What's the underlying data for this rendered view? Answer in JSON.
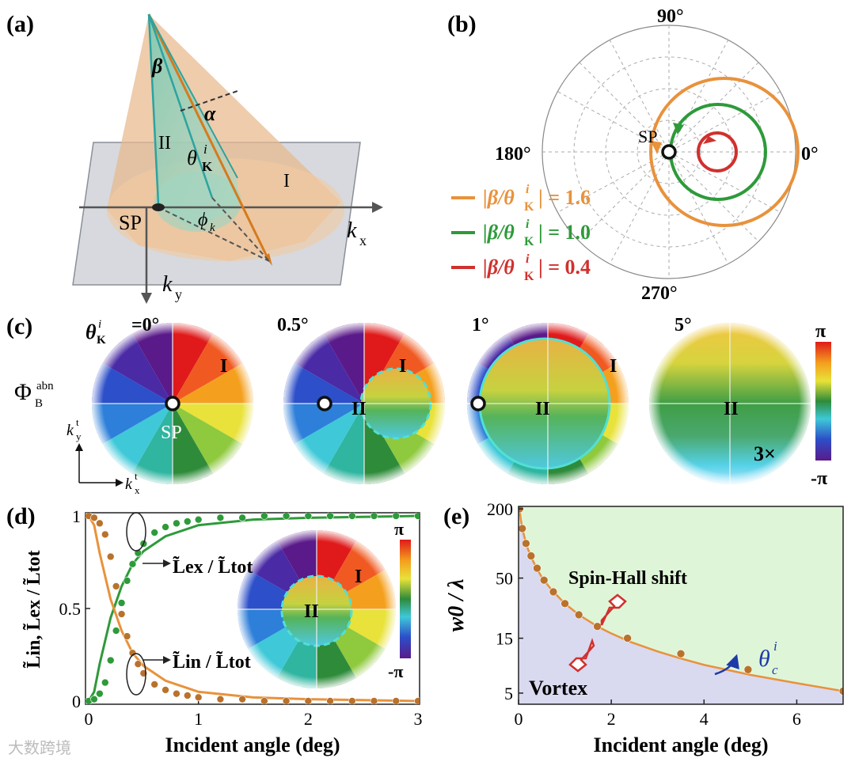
{
  "panel_a": {
    "label": "(a)",
    "beta": "β",
    "alpha": "α",
    "region_II": "II",
    "region_I": "I",
    "theta_main": "θ",
    "theta_sup": "i",
    "theta_sub": "K",
    "phi_main": "ϕ",
    "phi_sub": "k",
    "sp": "SP",
    "kx_main": "k",
    "kx_sub": "x",
    "ky_main": "k",
    "ky_sub": "y"
  },
  "panel_b": {
    "label": "(b)",
    "angle_90": "90°",
    "angle_180": "180°",
    "angle_0": "0°",
    "angle_270": "270°",
    "sp": "SP",
    "legend": [
      {
        "text": "|β/θ",
        "sub": "K",
        "sup": "i",
        "value": "| = 1.6",
        "color": "#e8923c"
      },
      {
        "text": "|β/θ",
        "sub": "K",
        "sup": "i",
        "value": "| = 1.0",
        "color": "#2e9a3a"
      },
      {
        "text": "|β/θ",
        "sub": "K",
        "sup": "i",
        "value": "| = 0.4",
        "color": "#d0312d"
      }
    ]
  },
  "panel_c": {
    "label": "(c)",
    "theta_prefix": "θ",
    "theta_sup": "i",
    "theta_sub": "K",
    "titles": [
      "=0°",
      "0.5°",
      "1°",
      "5°"
    ],
    "phi_main": "Φ",
    "phi_sub": "B",
    "phi_sup": "abn",
    "ky": "k",
    "ky_sub": "y",
    "ky_sup": "t",
    "kx": "k",
    "kx_sub": "x",
    "kx_sup": "t",
    "sp": "SP",
    "region_I": "I",
    "region_II": "II",
    "scale_note": "3×",
    "colorbar_top": "π",
    "colorbar_bottom": "-π"
  },
  "chart_data": [
    {
      "type": "line",
      "panel": "(d)",
      "xlabel": "Incident angle (deg)",
      "ylabel": "L̃in, L̃ex / L̃tot",
      "xlim": [
        0,
        3
      ],
      "ylim": [
        0,
        1
      ],
      "xticks": [
        "0",
        "1",
        "2",
        "3"
      ],
      "yticks": [
        "0",
        "0.5",
        "1"
      ],
      "annotation_ex": "L̃ex / L̃tot",
      "annotation_in": "L̃in / L̃tot",
      "inset_region_I": "I",
      "inset_region_II": "II",
      "inset_colorbar_top": "π",
      "inset_colorbar_bottom": "-π",
      "series": [
        {
          "marker": "line",
          "color": "#2e9a3a",
          "x": [
            0,
            0.05,
            0.1,
            0.2,
            0.3,
            0.4,
            0.5,
            0.7,
            1.0,
            1.5,
            2.0,
            3.0
          ],
          "y": [
            0,
            0.05,
            0.2,
            0.45,
            0.62,
            0.74,
            0.81,
            0.89,
            0.95,
            0.98,
            0.99,
            1.0
          ]
        },
        {
          "marker": "line",
          "color": "#e8923c",
          "x": [
            0,
            0.05,
            0.1,
            0.2,
            0.3,
            0.4,
            0.5,
            0.7,
            1.0,
            1.5,
            2.0,
            3.0
          ],
          "y": [
            1.0,
            0.95,
            0.8,
            0.55,
            0.38,
            0.26,
            0.19,
            0.11,
            0.05,
            0.02,
            0.01,
            0.0
          ]
        },
        {
          "marker": "dots",
          "color": "#2e9a3a",
          "x": [
            0,
            0.05,
            0.1,
            0.15,
            0.2,
            0.25,
            0.3,
            0.35,
            0.4,
            0.45,
            0.5,
            0.6,
            0.7,
            0.8,
            0.9,
            1.0,
            1.2,
            1.4,
            1.6,
            1.8,
            2.0,
            2.2,
            2.4,
            2.6,
            2.8,
            3.0
          ],
          "y": [
            0,
            0.01,
            0.04,
            0.1,
            0.22,
            0.38,
            0.53,
            0.65,
            0.74,
            0.8,
            0.85,
            0.91,
            0.94,
            0.96,
            0.97,
            0.98,
            0.99,
            0.99,
            1.0,
            1.0,
            1.0,
            1.0,
            1.0,
            1.0,
            1.0,
            1.0
          ]
        },
        {
          "marker": "dots",
          "color": "#b9722c",
          "x": [
            0,
            0.05,
            0.1,
            0.15,
            0.2,
            0.25,
            0.3,
            0.35,
            0.4,
            0.45,
            0.5,
            0.6,
            0.7,
            0.8,
            0.9,
            1.0,
            1.2,
            1.4,
            1.6,
            1.8,
            2.0,
            2.2,
            2.4,
            2.6,
            2.8,
            3.0
          ],
          "y": [
            1.0,
            0.99,
            0.96,
            0.9,
            0.78,
            0.62,
            0.47,
            0.35,
            0.26,
            0.2,
            0.15,
            0.09,
            0.06,
            0.04,
            0.03,
            0.02,
            0.01,
            0.01,
            0.0,
            0.0,
            0.0,
            0.0,
            0.0,
            0.0,
            0.0,
            0.0
          ]
        }
      ]
    },
    {
      "type": "line",
      "panel": "(e)",
      "xlabel": "Incident angle (deg)",
      "ylabel": "w0 / λ",
      "xlim": [
        0,
        7
      ],
      "ylim": [
        4,
        210
      ],
      "yscale": "log",
      "xticks": [
        "0",
        "2",
        "4",
        "6"
      ],
      "yticks": [
        "5",
        "15",
        "50",
        "200"
      ],
      "region_upper": "Spin-Hall shift",
      "region_lower": "Vortex",
      "curve_label": "θ",
      "curve_label_sub": "c",
      "curve_label_sup": "i",
      "upper_color": "#dff5d8",
      "lower_color": "#d9d9f0",
      "series": [
        {
          "color": "#e8923c",
          "x": [
            0.02,
            0.05,
            0.1,
            0.15,
            0.2,
            0.3,
            0.4,
            0.5,
            0.7,
            1.0,
            1.3,
            1.7,
            2.0,
            2.4,
            3.0,
            3.5,
            4.0,
            5.0,
            6.0,
            7.0
          ],
          "y": [
            200,
            160,
            125,
            105,
            90,
            72,
            60,
            51,
            40,
            30,
            24,
            19,
            16.5,
            14,
            11.5,
            10,
            8.8,
            7.2,
            6.1,
            5.2
          ]
        },
        {
          "marker": "dots",
          "color": "#b9722c",
          "x": [
            0.02,
            0.08,
            0.16,
            0.27,
            0.4,
            0.55,
            0.75,
            1.0,
            1.3,
            1.7,
            2.35,
            3.5,
            4.95,
            7.0
          ],
          "y": [
            200,
            135,
            100,
            78,
            61,
            48,
            38,
            30,
            24,
            19,
            15,
            11,
            8,
            5.2
          ]
        }
      ]
    }
  ],
  "watermark": "大数跨境"
}
